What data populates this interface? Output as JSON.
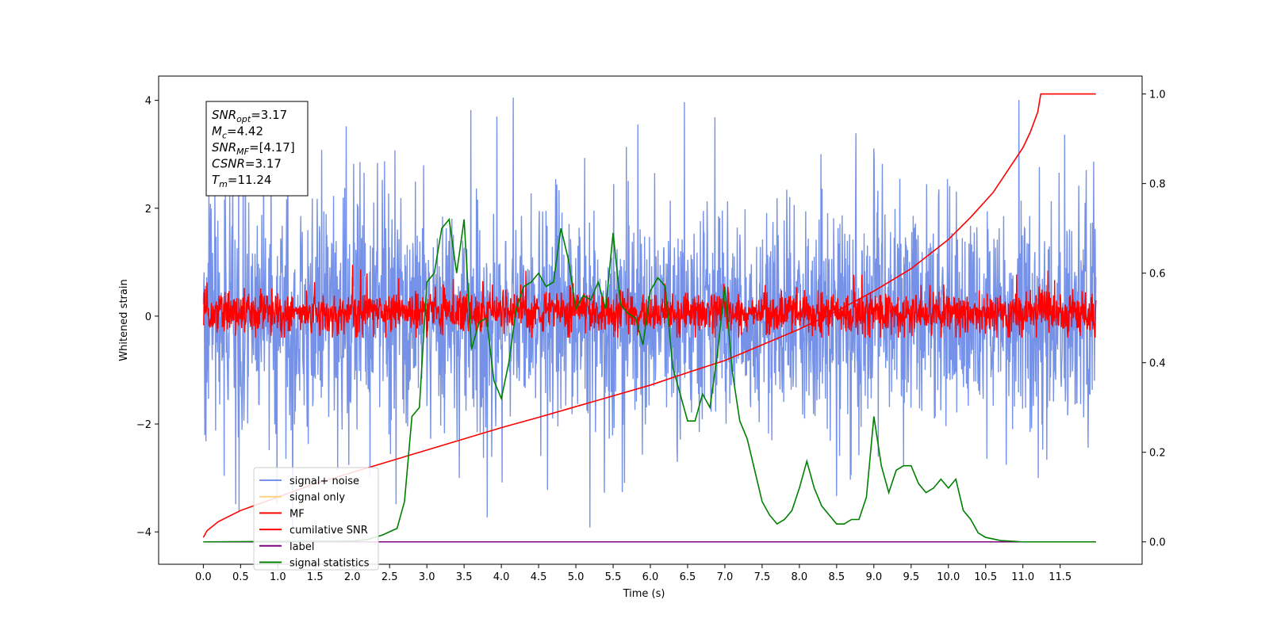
{
  "chart_data": {
    "type": "line",
    "xlabel": "Time (s)",
    "ylabel": "Whitened strain",
    "y2label": "",
    "xlim": [
      -0.6,
      12.6
    ],
    "ylim": [
      -4.6,
      4.45
    ],
    "y2lim": [
      -0.05,
      1.04
    ],
    "x_ticks": [
      "0.0",
      "0.5",
      "1.0",
      "1.5",
      "2.0",
      "2.5",
      "3.0",
      "3.5",
      "4.0",
      "4.5",
      "5.0",
      "5.5",
      "6.0",
      "6.5",
      "7.0",
      "7.5",
      "8.0",
      "8.5",
      "9.0",
      "9.5",
      "10.0",
      "10.5",
      "11.0",
      "11.5"
    ],
    "y_ticks": [
      4,
      2,
      0,
      -2,
      -4
    ],
    "y_tick_labels": [
      "4",
      "2",
      "0",
      "−2",
      "−4"
    ],
    "y2_ticks": [
      "1.0",
      "0.8",
      "0.6",
      "0.4",
      "0.2",
      "0.0"
    ],
    "annotation": [
      {
        "base": "SNR",
        "sub": "opt",
        "value": "=3.17"
      },
      {
        "base": "M",
        "sub": "c",
        "value": "=4.42"
      },
      {
        "base": "SNR",
        "sub": "MF",
        "value": "=[4.17]"
      },
      {
        "base": "CSNR",
        "sub": "",
        "value": "=3.17"
      },
      {
        "base": "T",
        "sub": "m",
        "value": "=11.24"
      }
    ],
    "legend": {
      "placement": "lower-left",
      "entries": [
        {
          "label": "signal+ noise",
          "color": "#7692e8"
        },
        {
          "label": "signal only",
          "color": "#ffd27f"
        },
        {
          "label": "MF",
          "color": "#ff0000"
        },
        {
          "label": "cumilative SNR",
          "color": "#ff0000"
        },
        {
          "label": "label",
          "color": "#800080"
        },
        {
          "label": "signal statistics",
          "color": "#008000"
        }
      ]
    },
    "series": [
      {
        "name": "signal+ noise",
        "axis": "left",
        "color": "#7692e8",
        "render": "noise",
        "x_range": [
          0.0,
          11.98
        ],
        "typical_range": [
          -2.3,
          2.3
        ],
        "max": 4.05,
        "min": -4.1
      },
      {
        "name": "MF",
        "axis": "left",
        "color": "#ff0000",
        "render": "noise",
        "x_range": [
          0.0,
          11.98
        ],
        "typical_range": [
          -0.35,
          0.5
        ],
        "max": 0.98,
        "min": -0.4
      },
      {
        "name": "cumilative SNR",
        "axis": "right",
        "color": "#ff0000",
        "x": [
          0.0,
          0.05,
          0.2,
          0.5,
          1.0,
          1.5,
          2.0,
          2.5,
          3.0,
          3.5,
          4.0,
          4.5,
          5.0,
          5.5,
          6.0,
          6.5,
          7.0,
          7.5,
          8.0,
          8.5,
          9.0,
          9.5,
          10.0,
          10.3,
          10.6,
          10.8,
          11.0,
          11.1,
          11.2,
          11.24,
          11.98
        ],
        "values": [
          0.01,
          0.025,
          0.045,
          0.07,
          0.1,
          0.13,
          0.155,
          0.18,
          0.205,
          0.23,
          0.255,
          0.278,
          0.302,
          0.326,
          0.35,
          0.378,
          0.405,
          0.44,
          0.475,
          0.515,
          0.56,
          0.61,
          0.675,
          0.725,
          0.78,
          0.83,
          0.88,
          0.915,
          0.96,
          1.0,
          1.0
        ]
      },
      {
        "name": "label",
        "axis": "right",
        "color": "#800080",
        "x": [
          0.0,
          11.98
        ],
        "values": [
          0.0,
          0.0
        ]
      },
      {
        "name": "signal statistics",
        "axis": "right",
        "color": "#008000",
        "x": [
          0.0,
          2.0,
          2.2,
          2.4,
          2.6,
          2.7,
          2.8,
          2.9,
          3.0,
          3.1,
          3.2,
          3.3,
          3.4,
          3.5,
          3.6,
          3.7,
          3.8,
          3.9,
          4.0,
          4.1,
          4.2,
          4.3,
          4.4,
          4.5,
          4.6,
          4.7,
          4.8,
          4.9,
          5.0,
          5.1,
          5.2,
          5.3,
          5.4,
          5.5,
          5.6,
          5.7,
          5.8,
          5.9,
          6.0,
          6.1,
          6.2,
          6.3,
          6.4,
          6.5,
          6.6,
          6.7,
          6.8,
          6.9,
          7.0,
          7.1,
          7.2,
          7.3,
          7.4,
          7.5,
          7.6,
          7.7,
          7.8,
          7.9,
          8.0,
          8.1,
          8.2,
          8.3,
          8.4,
          8.5,
          8.6,
          8.7,
          8.8,
          8.9,
          9.0,
          9.1,
          9.2,
          9.3,
          9.4,
          9.5,
          9.6,
          9.7,
          9.8,
          9.9,
          10.0,
          10.1,
          10.2,
          10.3,
          10.4,
          10.5,
          10.7,
          11.0,
          11.98
        ],
        "values": [
          0.0,
          0.002,
          0.005,
          0.015,
          0.03,
          0.09,
          0.28,
          0.3,
          0.58,
          0.6,
          0.7,
          0.72,
          0.6,
          0.72,
          0.43,
          0.49,
          0.5,
          0.36,
          0.32,
          0.4,
          0.52,
          0.57,
          0.58,
          0.6,
          0.57,
          0.58,
          0.7,
          0.63,
          0.52,
          0.55,
          0.54,
          0.58,
          0.52,
          0.69,
          0.53,
          0.51,
          0.5,
          0.44,
          0.56,
          0.59,
          0.57,
          0.39,
          0.33,
          0.27,
          0.27,
          0.33,
          0.3,
          0.42,
          0.57,
          0.38,
          0.27,
          0.23,
          0.16,
          0.09,
          0.06,
          0.04,
          0.05,
          0.07,
          0.12,
          0.18,
          0.12,
          0.08,
          0.06,
          0.04,
          0.04,
          0.05,
          0.05,
          0.1,
          0.28,
          0.17,
          0.11,
          0.16,
          0.17,
          0.17,
          0.13,
          0.11,
          0.12,
          0.14,
          0.12,
          0.14,
          0.07,
          0.05,
          0.02,
          0.01,
          0.003,
          0.0,
          0.0
        ]
      }
    ]
  }
}
